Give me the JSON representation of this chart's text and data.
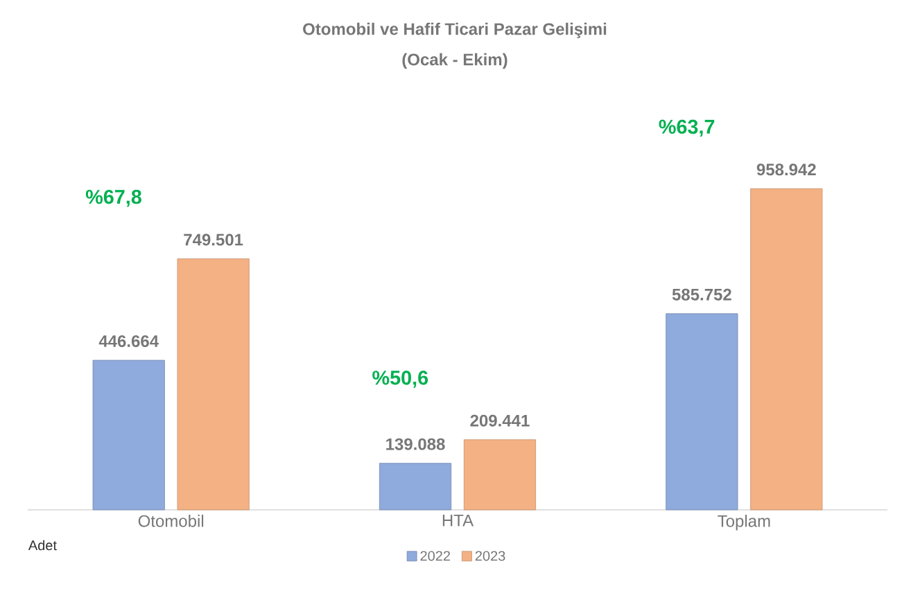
{
  "chart_data": {
    "type": "bar",
    "title": "Otomobil ve Hafif Ticari Pazar Gelişimi",
    "subtitle": "(Ocak - Ekim)",
    "categories": [
      "Otomobil",
      "HTA",
      "Toplam"
    ],
    "series": [
      {
        "name": "2022",
        "color": "#8faadc",
        "values": [
          446664,
          139088,
          585752
        ],
        "value_labels": [
          "446.664",
          "139.088",
          "585.752"
        ]
      },
      {
        "name": "2023",
        "color": "#f4b183",
        "values": [
          749501,
          209441,
          958942
        ],
        "value_labels": [
          "749.501",
          "209.441",
          "958.942"
        ]
      }
    ],
    "tick_labels": "x",
    "legend": "bottom",
    "grid": false,
    "annotations": [
      "%67,8",
      "%50,6",
      "%63,7",
      "Adet"
    ]
  }
}
